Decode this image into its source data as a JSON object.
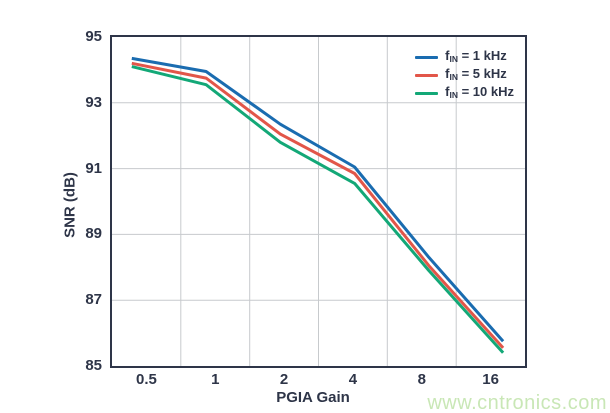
{
  "watermark": {
    "text": "www.cntronics.com",
    "color": "#c9e7b6"
  },
  "chart_data": {
    "type": "line",
    "title": "",
    "xlabel": "PGIA Gain",
    "ylabel": "SNR (dB)",
    "categories": [
      "0.5",
      "1",
      "2",
      "4",
      "8",
      "16"
    ],
    "x_scale": "log2-categorical",
    "ylim": [
      85,
      95
    ],
    "yticks": [
      "95",
      "93",
      "91",
      "89",
      "87",
      "85"
    ],
    "ytick_values": [
      95,
      93,
      91,
      89,
      87,
      85
    ],
    "y_gridlines": [
      93,
      91,
      89,
      87
    ],
    "grid": "on",
    "legend_position": "top-right-inside",
    "axis_color": "#2e3548",
    "grid_color": "#c7cacd",
    "x_data_span": [
      0.048,
      0.947
    ],
    "series": [
      {
        "name": "fIN = 1 kHz",
        "legend_f": "f",
        "legend_sub": "IN",
        "legend_rest": " = 1 kHz",
        "color": "#1a6cb0",
        "values": [
          94.35,
          93.95,
          92.35,
          91.05,
          88.3,
          85.75
        ]
      },
      {
        "name": "fIN = 5 kHz",
        "legend_f": "f",
        "legend_sub": "IN",
        "legend_rest": " = 5 kHz",
        "color": "#e25649",
        "values": [
          94.2,
          93.75,
          92.05,
          90.85,
          88.05,
          85.55
        ]
      },
      {
        "name": "fIN = 10 kHz",
        "legend_f": "f",
        "legend_sub": "IN",
        "legend_rest": " = 10 kHz",
        "color": "#13a877",
        "values": [
          94.1,
          93.55,
          91.8,
          90.55,
          87.9,
          85.4
        ]
      }
    ]
  }
}
